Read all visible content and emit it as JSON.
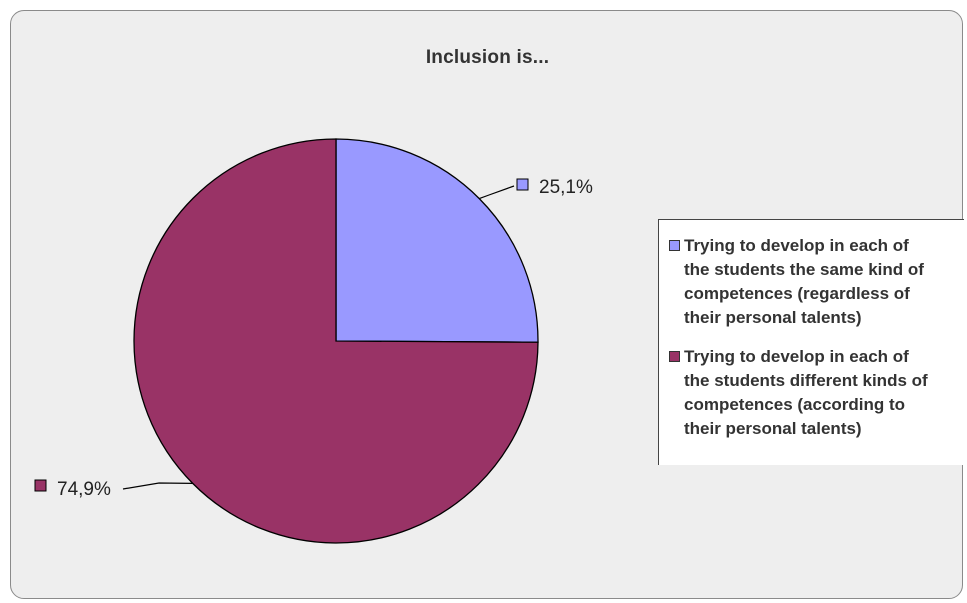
{
  "colors": {
    "series_1": "#9999ff",
    "series_2": "#993366",
    "outline": "#000000"
  },
  "chart_data": {
    "type": "pie",
    "title": "Inclusion is...",
    "slices": [
      {
        "name": "Trying to develop in each of\nthe students the same kind of\ncompetences (regardless of\ntheir personal talents)",
        "value": 25.1,
        "label": "25,1%",
        "color": "#9999ff"
      },
      {
        "name": "Trying to develop in each of\nthe students different kinds of\ncompetences (according to\ntheir personal talents)",
        "value": 74.9,
        "label": "74,9%",
        "color": "#993366"
      }
    ],
    "start_angle": "12 o'clock",
    "direction": "clockwise",
    "legend": "right"
  }
}
